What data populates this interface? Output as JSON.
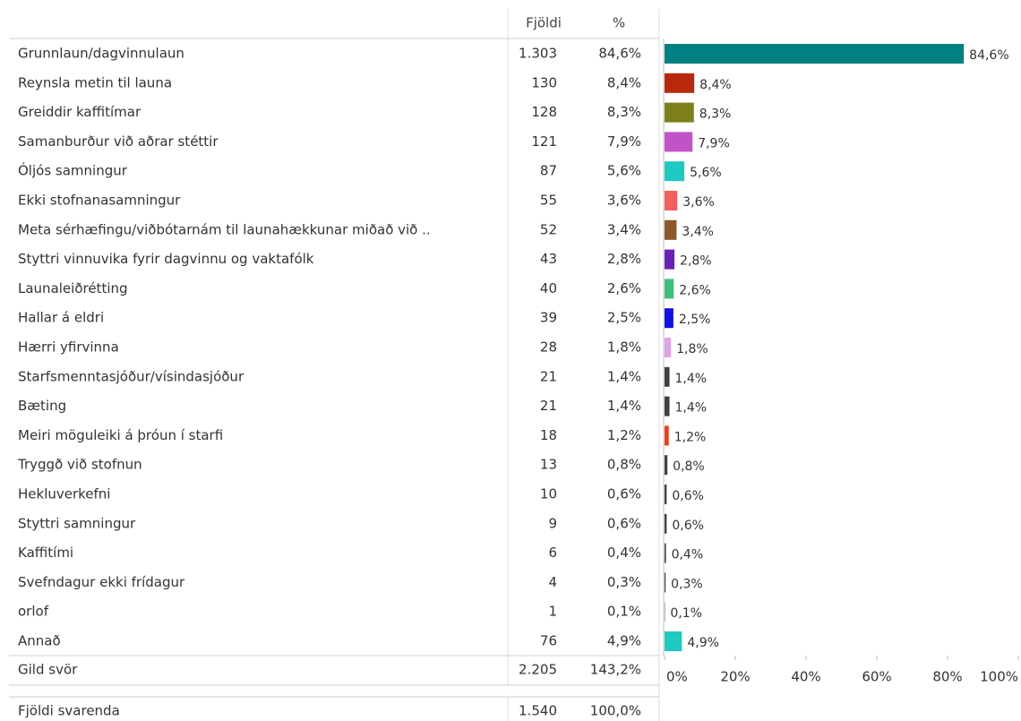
{
  "chart_data": {
    "type": "bar",
    "orientation": "horizontal",
    "categories": [
      "Grunnlaun/dagvinnulaun",
      "Reynsla metin til launa",
      "Greiddir kaffitímar",
      "Samanburður við aðrar stéttir",
      "Óljós samningur",
      "Ekki stofnanasamningur",
      "Meta sérhæfingu/viðbótarnám til launahækkunar miðað við ..",
      "Styttri vinnuvika fyrir dagvinnu og vaktafólk",
      "Launaleiðrétting",
      "Hallar á eldri",
      "Hærri yfirvinna",
      "Starfsmenntasjóður/vísindasjóður",
      "Bæting",
      "Meiri möguleiki á þróun í starfi",
      "Tryggð við stofnun",
      "Hekluverkefni",
      "Styttri samningur",
      "Kaffitími",
      "Svefndagur ekki frídagur",
      "orlof",
      "Annað"
    ],
    "values": [
      84.6,
      8.4,
      8.3,
      7.9,
      5.6,
      3.6,
      3.4,
      2.8,
      2.6,
      2.5,
      1.8,
      1.4,
      1.4,
      1.2,
      0.8,
      0.6,
      0.6,
      0.4,
      0.3,
      0.1,
      4.9
    ],
    "value_labels": [
      "84,6%",
      "8,4%",
      "8,3%",
      "7,9%",
      "5,6%",
      "3,6%",
      "3,4%",
      "2,8%",
      "2,6%",
      "2,5%",
      "1,8%",
      "1,4%",
      "1,4%",
      "1,2%",
      "0,8%",
      "0,6%",
      "0,6%",
      "0,4%",
      "0,3%",
      "0,1%",
      "4,9%"
    ],
    "colors": [
      "#008080",
      "#b8290c",
      "#7f7f1a",
      "#c152c8",
      "#1fcac2",
      "#f25f5c",
      "#8b5a2b",
      "#6a1fb5",
      "#3fbf7f",
      "#1010e0",
      "#e0a3e6",
      "#404040",
      "#404040",
      "#e8401c",
      "#404040",
      "#404040",
      "#404040",
      "#404040",
      "#404040",
      "#404040",
      "#1fcac2"
    ],
    "xlim": [
      0,
      100
    ],
    "xticks": [
      {
        "value": 0,
        "label": "0%"
      },
      {
        "value": 20,
        "label": "20%"
      },
      {
        "value": 40,
        "label": "40%"
      },
      {
        "value": 60,
        "label": "60%"
      },
      {
        "value": 80,
        "label": "80%"
      },
      {
        "value": 100,
        "label": "100%"
      }
    ]
  },
  "table": {
    "headers": [
      "Fjöldi",
      "%"
    ],
    "counts": [
      "1.303",
      "130",
      "128",
      "121",
      "87",
      "55",
      "52",
      "43",
      "40",
      "39",
      "28",
      "21",
      "21",
      "18",
      "13",
      "10",
      "9",
      "6",
      "4",
      "1",
      "76"
    ],
    "total": {
      "label": "Gild svör",
      "count": "2.205",
      "percent": "143,2%"
    },
    "respondents": {
      "label": "Fjöldi svarenda",
      "count": "1.540",
      "percent": "100,0%"
    }
  }
}
